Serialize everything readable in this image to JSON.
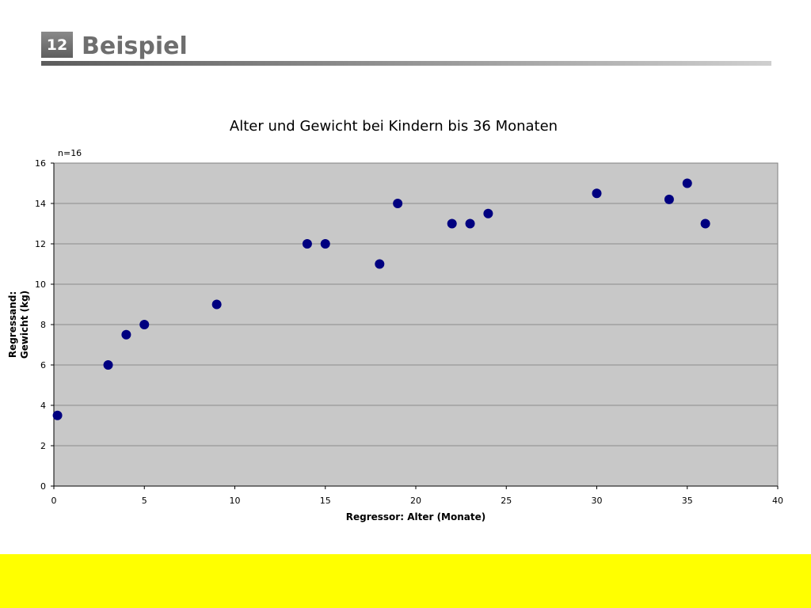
{
  "slide": {
    "number": "12",
    "title": "Beispiel"
  },
  "colors": {
    "plot_background": "#c8c8c8",
    "marker": "#000080",
    "footer": "#ffff00",
    "gridline": "#8c8c8c"
  },
  "chart_data": {
    "type": "scatter",
    "title": "Alter und Gewicht bei Kindern bis 36 Monaten",
    "annotation": "n=16",
    "xlabel": "Regressor: Alter (Monate)",
    "ylabel_lines": [
      "Regressand:",
      "Gewicht (kg)"
    ],
    "xlim": [
      0,
      40
    ],
    "ylim": [
      0,
      16
    ],
    "xticks": [
      0,
      5,
      10,
      15,
      20,
      25,
      30,
      35,
      40
    ],
    "yticks": [
      0,
      2,
      4,
      6,
      8,
      10,
      12,
      14,
      16
    ],
    "grid": "horizontal",
    "legend": "none",
    "points": [
      {
        "x": 0.2,
        "y": 3.5
      },
      {
        "x": 3,
        "y": 6
      },
      {
        "x": 4,
        "y": 7.5
      },
      {
        "x": 5,
        "y": 8
      },
      {
        "x": 9,
        "y": 9
      },
      {
        "x": 14,
        "y": 12
      },
      {
        "x": 15,
        "y": 12
      },
      {
        "x": 18,
        "y": 11
      },
      {
        "x": 19,
        "y": 14
      },
      {
        "x": 22,
        "y": 13
      },
      {
        "x": 23,
        "y": 13
      },
      {
        "x": 24,
        "y": 13.5
      },
      {
        "x": 30,
        "y": 14.5
      },
      {
        "x": 34,
        "y": 14.2
      },
      {
        "x": 35,
        "y": 15
      },
      {
        "x": 36,
        "y": 13
      }
    ]
  }
}
